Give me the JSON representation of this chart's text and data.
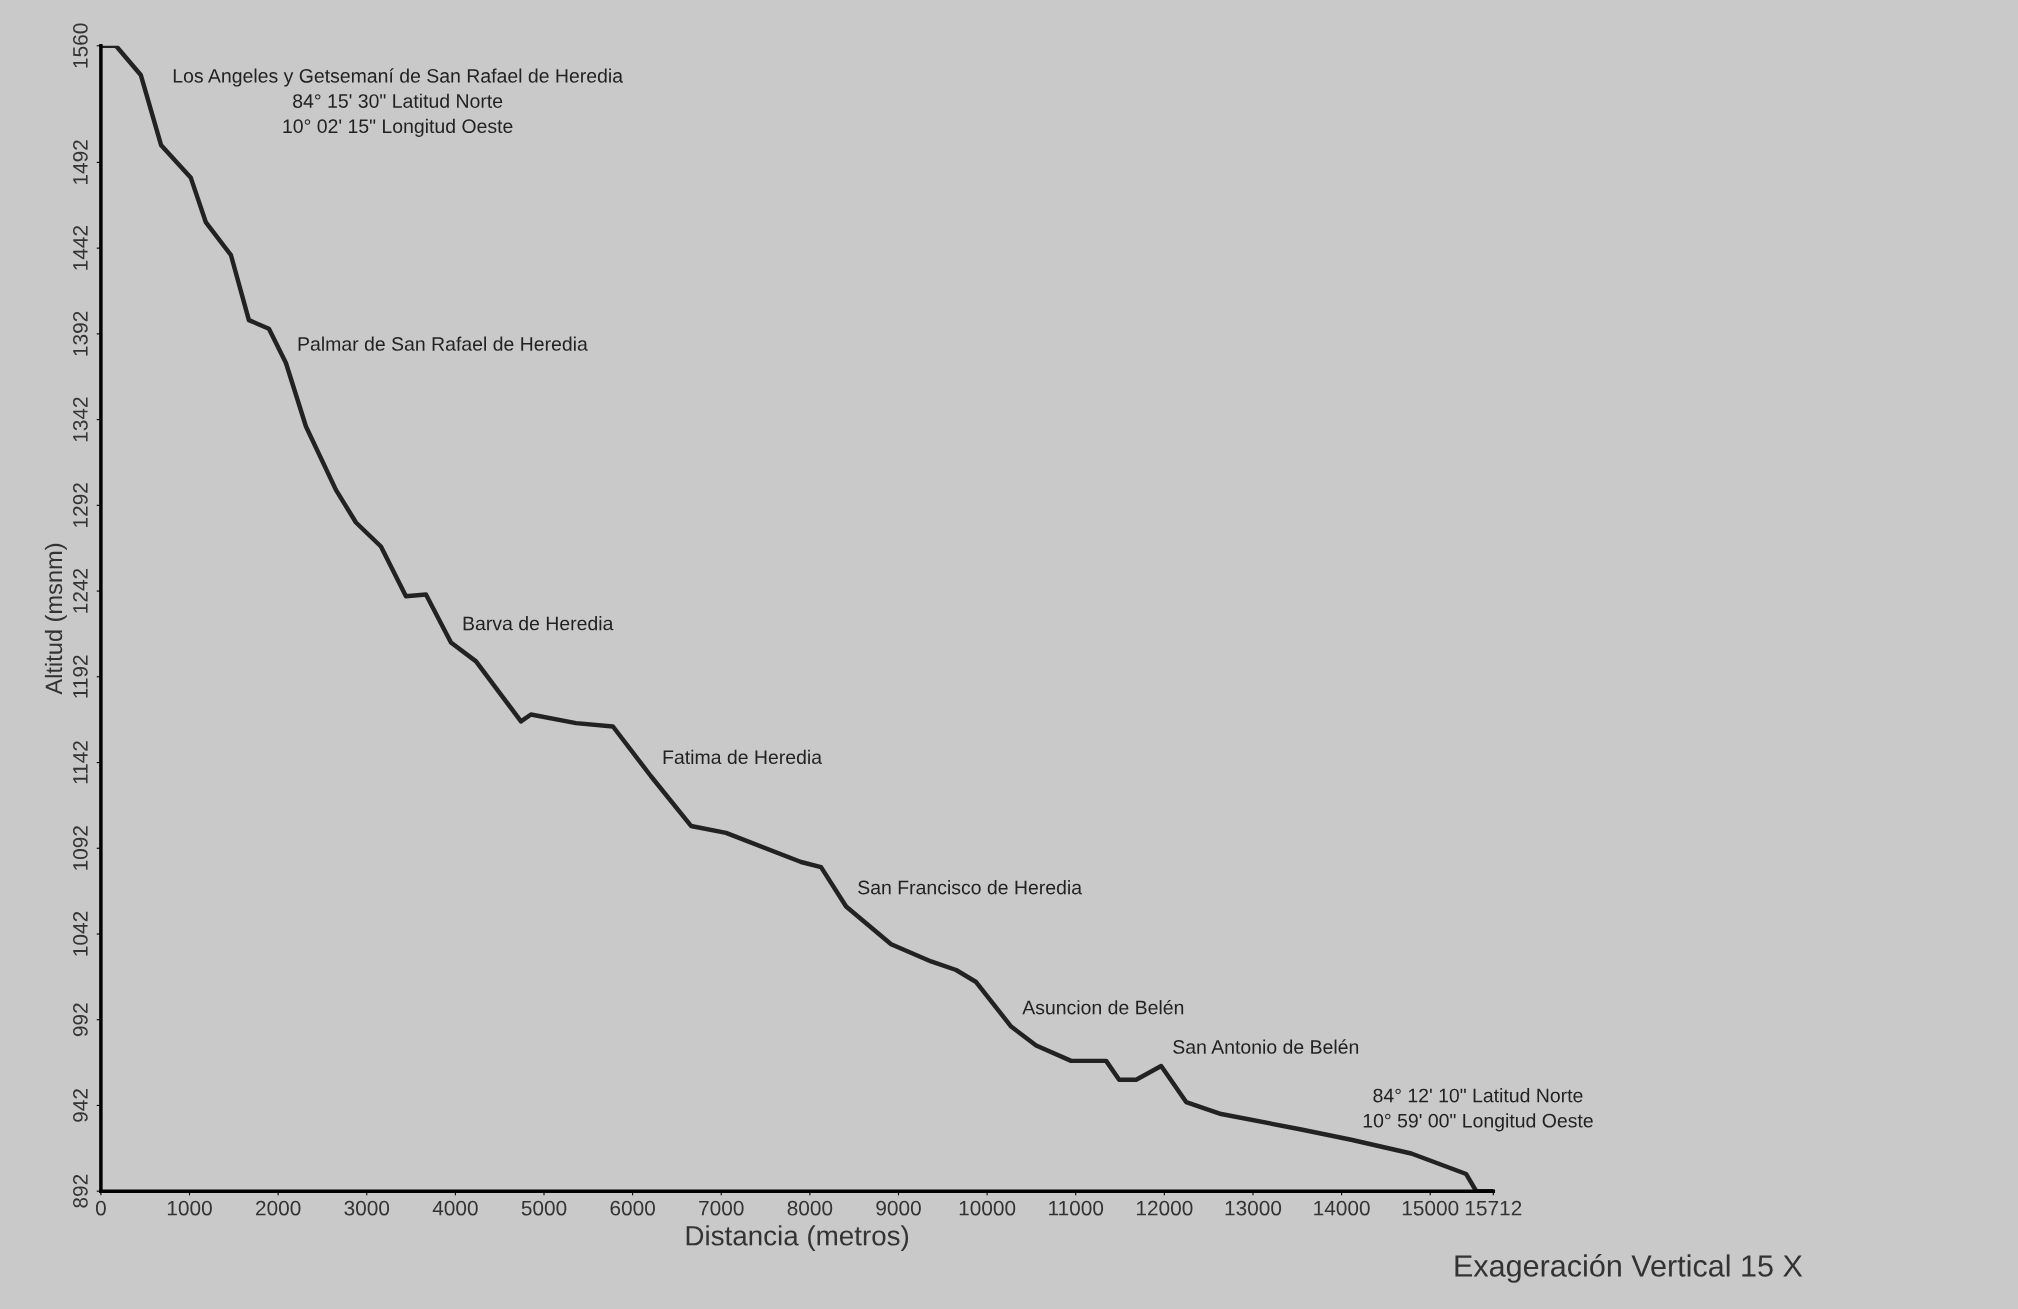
{
  "chart_data": {
    "type": "line",
    "xlabel": "Distancia (metros)",
    "ylabel": "Altitud (msnm)",
    "xlim": [
      0,
      15712
    ],
    "ylim": [
      892,
      1560
    ],
    "xticks": [
      0,
      1000,
      2000,
      3000,
      4000,
      5000,
      6000,
      7000,
      8000,
      9000,
      10000,
      11000,
      12000,
      13000,
      14000,
      15000,
      15712
    ],
    "yticks": [
      892,
      942,
      992,
      1042,
      1092,
      1142,
      1192,
      1242,
      1292,
      1342,
      1392,
      1442,
      1492,
      1560
    ],
    "grid": false,
    "legend": false,
    "marker": "none",
    "line_style": "solid",
    "series": [
      {
        "color": "#222222",
        "x": [
          0,
          170,
          450,
          680,
          1015,
          1185,
          1467,
          1670,
          1896,
          2088,
          2314,
          2652,
          2878,
          3160,
          3442,
          3668,
          3950,
          4233,
          4740,
          4853,
          5361,
          5778,
          6207,
          6659,
          7054,
          7901,
          8126,
          8409,
          8917,
          9368,
          9650,
          9876,
          10271,
          10553,
          10948,
          11343,
          11490,
          11682,
          11964,
          12246,
          12641,
          13544,
          14108,
          14786,
          15406,
          15519,
          15712
        ],
        "values": [
          1560,
          1560,
          1543,
          1502,
          1483,
          1457,
          1438,
          1400,
          1395,
          1375,
          1338,
          1301,
          1282,
          1268,
          1239,
          1240,
          1212,
          1201,
          1166,
          1170,
          1165,
          1163,
          1134,
          1105,
          1101,
          1084,
          1081,
          1058,
          1036,
          1026,
          1021,
          1014,
          988,
          977,
          968,
          968,
          957,
          957,
          965,
          944,
          937,
          928,
          922,
          914,
          902,
          892,
          892
        ]
      }
    ],
    "annotations": [
      {
        "text": "Los Angeles y Getsemaní de San Rafael de Heredia\n84° 15' 30\" Latitud Norte\n10° 02' 15\" Longitud Oeste",
        "x": 680,
        "y": 1502
      },
      {
        "text": "Palmar de San Rafael de Heredia",
        "x": 2088,
        "y": 1375
      },
      {
        "text": "Barva de Heredia",
        "x": 3950,
        "y": 1212
      },
      {
        "text": "Fatima de Heredia",
        "x": 6207,
        "y": 1134
      },
      {
        "text": "San Francisco de Heredia",
        "x": 8409,
        "y": 1058
      },
      {
        "text": "Asuncion de Belén",
        "x": 10271,
        "y": 988
      },
      {
        "text": "San Antonio de Belén",
        "x": 11964,
        "y": 965
      },
      {
        "text": "84° 12' 10\" Latitud Norte\n10° 59' 00\" Longitud Oeste",
        "x": 14108,
        "y": 922
      },
      "Exageración Vertical 15 X"
    ]
  }
}
